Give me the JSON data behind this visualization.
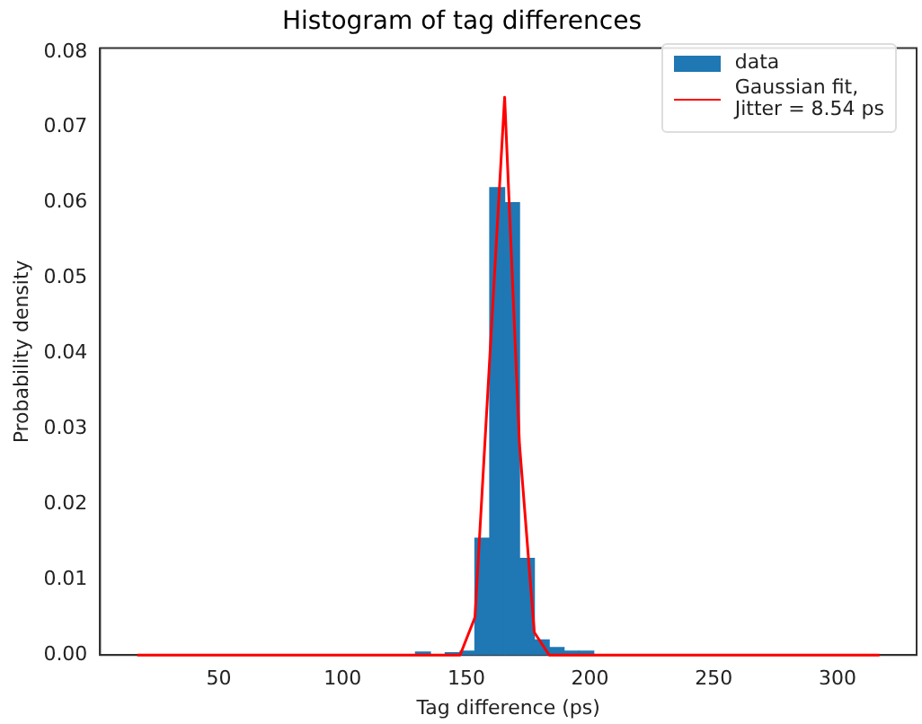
{
  "chart_data": {
    "type": "histogram",
    "title": "Histogram of tag differences",
    "xlabel": "Tag difference (ps)",
    "ylabel": "Probability density",
    "bins": [
      129.5,
      135.5,
      141.5,
      147.5,
      153.5,
      159.5,
      165.5,
      171.5,
      177.5,
      183.5,
      189.5,
      195.5,
      201.5
    ],
    "series": [
      {
        "name": "data",
        "color": "#1f77b4",
        "values": [
          0.0004,
          0,
          0.0003,
          0.0005,
          0.0155,
          0.062,
          0.06,
          0.0128,
          0.002,
          0.001,
          0.0005,
          0.0005
        ]
      },
      {
        "name": "Gaussian fit,\nJitter = 8.54 ps",
        "type": "line",
        "color": "#ff0000",
        "x": [
          17,
          147.5,
          153.5,
          165.5,
          171.5,
          177.5,
          183.5,
          317
        ],
        "values": [
          0,
          0,
          0.005,
          0.074,
          0.028,
          0.003,
          0,
          0
        ]
      }
    ],
    "xlim": [
      2,
      332
    ],
    "xticks": [
      50,
      100,
      150,
      200,
      250,
      300
    ],
    "ylim": [
      0,
      0.0805
    ],
    "yticks": [
      {
        "value": 0,
        "label": "0.00"
      },
      {
        "value": 0.01,
        "label": "0.01"
      },
      {
        "value": 0.02,
        "label": "0.02"
      },
      {
        "value": 0.03,
        "label": "0.03"
      },
      {
        "value": 0.04,
        "label": "0.04"
      },
      {
        "value": 0.05,
        "label": "0.05"
      },
      {
        "value": 0.06,
        "label": "0.06"
      },
      {
        "value": 0.07,
        "label": "0.07"
      },
      {
        "value": 0.08,
        "label": "0.08"
      }
    ],
    "grid": false,
    "legend": "top right"
  }
}
